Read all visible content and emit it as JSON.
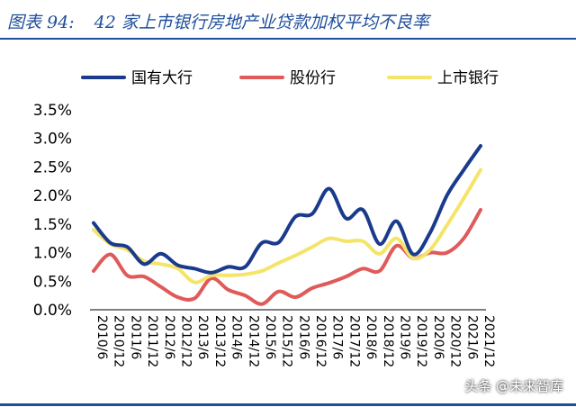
{
  "figure": {
    "title_prefix": "图表 94:",
    "title_text": "42 家上市银行房地产业贷款加权平均不良率",
    "watermark": "头条 @未来智库"
  },
  "chart_data": {
    "type": "line",
    "x": [
      "2010/6",
      "2010/12",
      "2011/6",
      "2011/12",
      "2012/6",
      "2012/12",
      "2013/6",
      "2013/12",
      "2014/6",
      "2014/12",
      "2015/6",
      "2015/12",
      "2016/6",
      "2016/12",
      "2017/6",
      "2017/12",
      "2018/6",
      "2018/12",
      "2019/6",
      "2019/12",
      "2020/6",
      "2020/12",
      "2021/6",
      "2021/12"
    ],
    "y_ticks": [
      "0.0%",
      "0.5%",
      "1.0%",
      "1.5%",
      "2.0%",
      "2.5%",
      "3.0%",
      "3.5%"
    ],
    "ylim": [
      0,
      3.5
    ],
    "legend_position": "top",
    "grid": false,
    "series": [
      {
        "name": "国有大行",
        "color": "#1a3a8c",
        "values": [
          1.52,
          1.17,
          1.1,
          0.8,
          0.98,
          0.78,
          0.72,
          0.65,
          0.75,
          0.75,
          1.17,
          1.18,
          1.63,
          1.68,
          2.12,
          1.6,
          1.75,
          1.15,
          1.55,
          0.97,
          1.35,
          2.0,
          2.45,
          2.87
        ]
      },
      {
        "name": "股份行",
        "color": "#e05a5a",
        "values": [
          0.68,
          0.97,
          0.6,
          0.58,
          0.4,
          0.22,
          0.2,
          0.55,
          0.35,
          0.25,
          0.1,
          0.32,
          0.22,
          0.38,
          0.47,
          0.58,
          0.72,
          0.68,
          1.12,
          0.9,
          1.0,
          1.0,
          1.25,
          1.75
        ]
      },
      {
        "name": "上市银行",
        "color": "#f5e46a",
        "values": [
          1.4,
          1.15,
          1.05,
          0.85,
          0.8,
          0.72,
          0.48,
          0.6,
          0.6,
          0.62,
          0.68,
          0.82,
          0.95,
          1.1,
          1.25,
          1.2,
          1.2,
          0.98,
          1.25,
          0.9,
          1.05,
          1.48,
          1.95,
          2.45
        ]
      }
    ]
  }
}
